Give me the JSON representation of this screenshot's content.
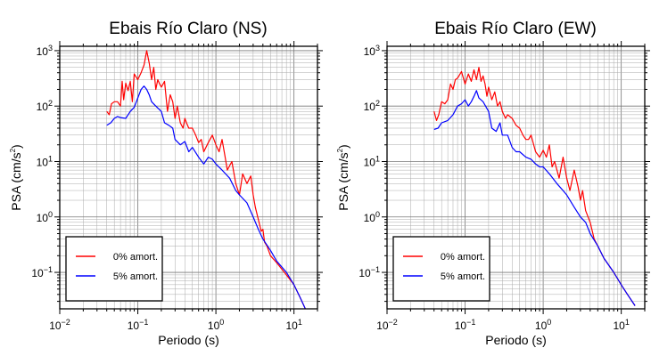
{
  "chart_data": [
    {
      "type": "line",
      "title": "Ebais Río Claro (NS)",
      "xlabel": "Periodo (s)",
      "ylabel_main": "PSA (cm/s",
      "ylabel_sup": "2",
      "ylabel_close": ")",
      "xscale": "log",
      "yscale": "log",
      "xlim": [
        0.01,
        20
      ],
      "ylim": [
        0.022,
        1200
      ],
      "grid": true,
      "legend": "bottom-left",
      "x_ticks": [
        {
          "v": 0.01,
          "base": "10",
          "exp": "−2"
        },
        {
          "v": 0.1,
          "base": "10",
          "exp": "−1"
        },
        {
          "v": 1,
          "base": "10",
          "exp": "0"
        },
        {
          "v": 10,
          "base": "10",
          "exp": "1"
        }
      ],
      "y_ticks": [
        {
          "v": 0.1,
          "base": "10",
          "exp": "−1"
        },
        {
          "v": 1,
          "base": "10",
          "exp": "0"
        },
        {
          "v": 10,
          "base": "10",
          "exp": "1"
        },
        {
          "v": 100,
          "base": "10",
          "exp": "2"
        },
        {
          "v": 1000,
          "base": "10",
          "exp": "3"
        }
      ],
      "series": [
        {
          "name": "0% amort.",
          "color": "#ff0000",
          "points": [
            [
              0.04,
              80
            ],
            [
              0.043,
              70
            ],
            [
              0.046,
              110
            ],
            [
              0.05,
              120
            ],
            [
              0.055,
              120
            ],
            [
              0.06,
              100
            ],
            [
              0.063,
              280
            ],
            [
              0.066,
              130
            ],
            [
              0.07,
              260
            ],
            [
              0.075,
              190
            ],
            [
              0.08,
              280
            ],
            [
              0.085,
              120
            ],
            [
              0.09,
              380
            ],
            [
              0.1,
              300
            ],
            [
              0.11,
              400
            ],
            [
              0.12,
              550
            ],
            [
              0.13,
              1000
            ],
            [
              0.14,
              600
            ],
            [
              0.15,
              300
            ],
            [
              0.16,
              500
            ],
            [
              0.17,
              200
            ],
            [
              0.18,
              300
            ],
            [
              0.19,
              250
            ],
            [
              0.2,
              220
            ],
            [
              0.22,
              280
            ],
            [
              0.24,
              80
            ],
            [
              0.26,
              160
            ],
            [
              0.28,
              120
            ],
            [
              0.3,
              60
            ],
            [
              0.32,
              100
            ],
            [
              0.35,
              50
            ],
            [
              0.38,
              40
            ],
            [
              0.4,
              60
            ],
            [
              0.42,
              50
            ],
            [
              0.45,
              40
            ],
            [
              0.5,
              40
            ],
            [
              0.55,
              30
            ],
            [
              0.6,
              22
            ],
            [
              0.65,
              25
            ],
            [
              0.7,
              15
            ],
            [
              0.8,
              22
            ],
            [
              0.9,
              30
            ],
            [
              1.0,
              20
            ],
            [
              1.1,
              15
            ],
            [
              1.2,
              25
            ],
            [
              1.3,
              13
            ],
            [
              1.4,
              7
            ],
            [
              1.6,
              10
            ],
            [
              1.8,
              4
            ],
            [
              2.0,
              2.5
            ],
            [
              2.2,
              6
            ],
            [
              2.5,
              4
            ],
            [
              2.8,
              5.5
            ],
            [
              3.0,
              2.5
            ],
            [
              3.2,
              1.5
            ],
            [
              3.5,
              0.9
            ],
            [
              3.8,
              0.55
            ],
            [
              4.0,
              0.6
            ],
            [
              4.2,
              0.35
            ],
            [
              4.5,
              0.3
            ],
            [
              5.0,
              0.2
            ],
            [
              6.0,
              0.15
            ],
            [
              8.0,
              0.09
            ],
            [
              10.0,
              0.06
            ],
            [
              12.0,
              0.035
            ],
            [
              14.0,
              0.022
            ]
          ]
        },
        {
          "name": "5% amort.",
          "color": "#0000ff",
          "points": [
            [
              0.04,
              45
            ],
            [
              0.045,
              50
            ],
            [
              0.05,
              60
            ],
            [
              0.055,
              65
            ],
            [
              0.06,
              62
            ],
            [
              0.07,
              60
            ],
            [
              0.08,
              80
            ],
            [
              0.09,
              95
            ],
            [
              0.1,
              140
            ],
            [
              0.11,
              200
            ],
            [
              0.12,
              230
            ],
            [
              0.13,
              200
            ],
            [
              0.14,
              160
            ],
            [
              0.15,
              120
            ],
            [
              0.17,
              100
            ],
            [
              0.2,
              80
            ],
            [
              0.22,
              50
            ],
            [
              0.25,
              45
            ],
            [
              0.28,
              40
            ],
            [
              0.3,
              25
            ],
            [
              0.35,
              20
            ],
            [
              0.4,
              23
            ],
            [
              0.45,
              15
            ],
            [
              0.5,
              18
            ],
            [
              0.6,
              12
            ],
            [
              0.7,
              9
            ],
            [
              0.8,
              12
            ],
            [
              0.9,
              11
            ],
            [
              1.0,
              9
            ],
            [
              1.2,
              7
            ],
            [
              1.5,
              5
            ],
            [
              1.8,
              3
            ],
            [
              2.0,
              2.5
            ],
            [
              2.5,
              1.8
            ],
            [
              3.0,
              1.0
            ],
            [
              3.5,
              0.6
            ],
            [
              4.0,
              0.4
            ],
            [
              5.0,
              0.25
            ],
            [
              6.0,
              0.16
            ],
            [
              8.0,
              0.1
            ],
            [
              10.0,
              0.06
            ],
            [
              12.0,
              0.035
            ],
            [
              14.0,
              0.022
            ]
          ]
        }
      ]
    },
    {
      "type": "line",
      "title": "Ebais Río Claro (EW)",
      "xlabel": "Periodo (s)",
      "ylabel_main": "PSA (cm/s",
      "ylabel_sup": "2",
      "ylabel_close": ")",
      "xscale": "log",
      "yscale": "log",
      "xlim": [
        0.01,
        20
      ],
      "ylim": [
        0.022,
        1200
      ],
      "grid": true,
      "legend": "bottom-left",
      "x_ticks": [
        {
          "v": 0.01,
          "base": "10",
          "exp": "−2"
        },
        {
          "v": 0.1,
          "base": "10",
          "exp": "−1"
        },
        {
          "v": 1,
          "base": "10",
          "exp": "0"
        },
        {
          "v": 10,
          "base": "10",
          "exp": "1"
        }
      ],
      "y_ticks": [
        {
          "v": 0.1,
          "base": "10",
          "exp": "−1"
        },
        {
          "v": 1,
          "base": "10",
          "exp": "0"
        },
        {
          "v": 10,
          "base": "10",
          "exp": "1"
        },
        {
          "v": 100,
          "base": "10",
          "exp": "2"
        },
        {
          "v": 1000,
          "base": "10",
          "exp": "3"
        }
      ],
      "series": [
        {
          "name": "0% amort.",
          "color": "#ff0000",
          "points": [
            [
              0.04,
              80
            ],
            [
              0.043,
              55
            ],
            [
              0.046,
              70
            ],
            [
              0.05,
              120
            ],
            [
              0.055,
              110
            ],
            [
              0.06,
              130
            ],
            [
              0.065,
              250
            ],
            [
              0.07,
              200
            ],
            [
              0.075,
              300
            ],
            [
              0.08,
              320
            ],
            [
              0.09,
              420
            ],
            [
              0.1,
              250
            ],
            [
              0.11,
              380
            ],
            [
              0.12,
              280
            ],
            [
              0.13,
              450
            ],
            [
              0.14,
              300
            ],
            [
              0.15,
              500
            ],
            [
              0.16,
              280
            ],
            [
              0.17,
              350
            ],
            [
              0.18,
              250
            ],
            [
              0.19,
              150
            ],
            [
              0.2,
              220
            ],
            [
              0.22,
              130
            ],
            [
              0.24,
              180
            ],
            [
              0.26,
              100
            ],
            [
              0.28,
              120
            ],
            [
              0.3,
              80
            ],
            [
              0.33,
              60
            ],
            [
              0.35,
              70
            ],
            [
              0.4,
              60
            ],
            [
              0.45,
              45
            ],
            [
              0.5,
              40
            ],
            [
              0.55,
              30
            ],
            [
              0.6,
              25
            ],
            [
              0.65,
              25
            ],
            [
              0.7,
              30
            ],
            [
              0.8,
              15
            ],
            [
              0.9,
              12
            ],
            [
              1.0,
              16
            ],
            [
              1.1,
              12
            ],
            [
              1.2,
              20
            ],
            [
              1.3,
              8
            ],
            [
              1.4,
              10
            ],
            [
              1.6,
              5
            ],
            [
              1.8,
              12
            ],
            [
              2.0,
              5
            ],
            [
              2.2,
              3
            ],
            [
              2.5,
              7
            ],
            [
              2.8,
              3.5
            ],
            [
              3.0,
              2.0
            ],
            [
              3.2,
              3.0
            ],
            [
              3.5,
              1.3
            ],
            [
              4.0,
              0.8
            ],
            [
              4.5,
              0.4
            ],
            [
              5.0,
              0.3
            ],
            [
              6.0,
              0.18
            ],
            [
              8.0,
              0.1
            ],
            [
              10.0,
              0.06
            ],
            [
              12.0,
              0.04
            ],
            [
              15.0,
              0.025
            ]
          ]
        },
        {
          "name": "5% amort.",
          "color": "#0000ff",
          "points": [
            [
              0.04,
              38
            ],
            [
              0.045,
              40
            ],
            [
              0.05,
              50
            ],
            [
              0.06,
              55
            ],
            [
              0.07,
              70
            ],
            [
              0.08,
              100
            ],
            [
              0.09,
              110
            ],
            [
              0.1,
              130
            ],
            [
              0.11,
              100
            ],
            [
              0.12,
              120
            ],
            [
              0.13,
              150
            ],
            [
              0.14,
              190
            ],
            [
              0.15,
              140
            ],
            [
              0.17,
              120
            ],
            [
              0.2,
              80
            ],
            [
              0.22,
              40
            ],
            [
              0.25,
              35
            ],
            [
              0.28,
              50
            ],
            [
              0.3,
              30
            ],
            [
              0.35,
              30
            ],
            [
              0.4,
              18
            ],
            [
              0.45,
              15
            ],
            [
              0.5,
              15
            ],
            [
              0.6,
              12
            ],
            [
              0.7,
              11
            ],
            [
              0.8,
              9
            ],
            [
              0.9,
              8
            ],
            [
              1.0,
              8
            ],
            [
              1.2,
              6
            ],
            [
              1.5,
              4
            ],
            [
              1.8,
              3
            ],
            [
              2.0,
              2.5
            ],
            [
              2.5,
              1.5
            ],
            [
              3.0,
              1.0
            ],
            [
              3.5,
              0.8
            ],
            [
              4.0,
              0.5
            ],
            [
              5.0,
              0.3
            ],
            [
              6.0,
              0.18
            ],
            [
              8.0,
              0.1
            ],
            [
              10.0,
              0.06
            ],
            [
              12.0,
              0.04
            ],
            [
              15.0,
              0.025
            ]
          ]
        }
      ]
    }
  ]
}
